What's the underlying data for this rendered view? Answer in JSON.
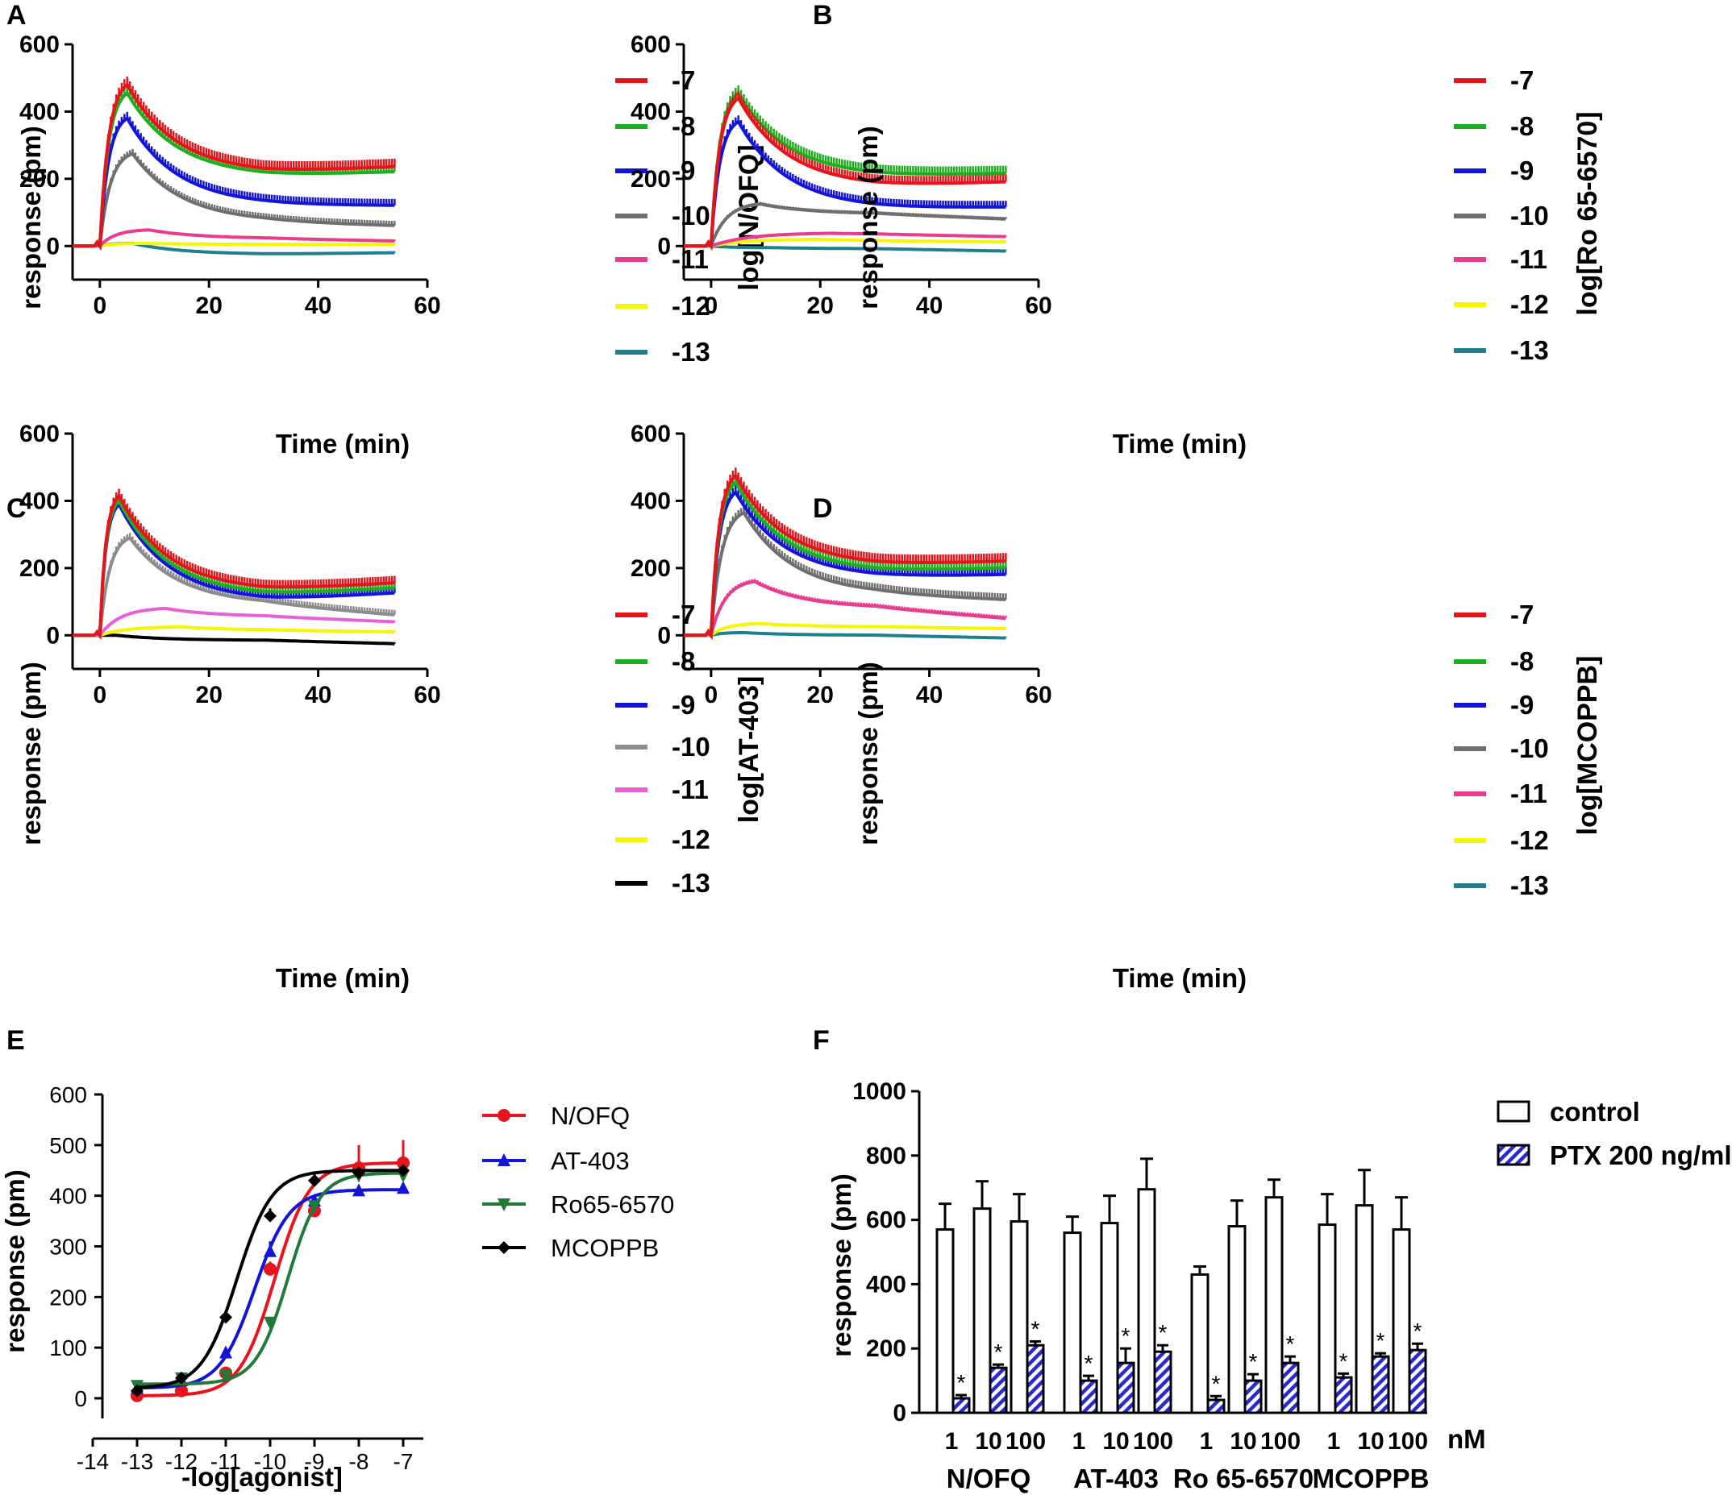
{
  "colors": {
    "red": "#e8141c",
    "green": "#1fae1f",
    "blue": "#1414d8",
    "grey": "#6f6f6f",
    "grey_light": "#8c8c8c",
    "pink": "#ea3c8e",
    "pink_light": "#e860d8",
    "yellow": "#f6f600",
    "teal": "#1f7f8f",
    "black": "#000000",
    "dark_green": "#207a3a",
    "hatch_blue": "#2a2ad0"
  },
  "chart_data": [
    {
      "id": "A",
      "panel_label": "A",
      "type": "line",
      "xlabel": "Time (min)",
      "ylabel": "response (pm)",
      "xlim": [
        -5,
        60
      ],
      "ylim": [
        -100,
        600
      ],
      "x_ticks": [
        "0",
        "20",
        "40",
        "60"
      ],
      "y_ticks": [
        "0",
        "200",
        "400",
        "600"
      ],
      "legend_title": "log[N/OFQ]",
      "series": [
        {
          "name": "-7",
          "color": "red",
          "peak": 480,
          "peak_t": 5,
          "plateau": 215,
          "tail": 235
        },
        {
          "name": "-8",
          "color": "green",
          "peak": 455,
          "peak_t": 5,
          "plateau": 205,
          "tail": 220
        },
        {
          "name": "-9",
          "color": "blue",
          "peak": 380,
          "peak_t": 5,
          "plateau": 120,
          "tail": 120
        },
        {
          "name": "-10",
          "color": "grey",
          "peak": 275,
          "peak_t": 6,
          "plateau": 70,
          "tail": 60
        },
        {
          "name": "-11",
          "color": "pink",
          "peak": 48,
          "peak_t": 9,
          "plateau": 22,
          "tail": 15
        },
        {
          "name": "-12",
          "color": "yellow",
          "peak": 8,
          "peak_t": 8,
          "plateau": 5,
          "tail": 5
        },
        {
          "name": "-13",
          "color": "teal",
          "peak": 8,
          "peak_t": 6,
          "plateau": -25,
          "tail": -20
        }
      ]
    },
    {
      "id": "B",
      "panel_label": "B",
      "type": "line",
      "xlabel": "Time (min)",
      "ylabel": "response (pm)",
      "xlim": [
        -5,
        60
      ],
      "ylim": [
        -100,
        600
      ],
      "x_ticks": [
        "0",
        "20",
        "40",
        "60"
      ],
      "y_ticks": [
        "0",
        "200",
        "400",
        "600"
      ],
      "legend_title": "log[Ro 65-6570]",
      "series": [
        {
          "name": "-7",
          "color": "red",
          "peak": 440,
          "peak_t": 5,
          "plateau": 175,
          "tail": 190
        },
        {
          "name": "-8",
          "color": "green",
          "peak": 455,
          "peak_t": 5,
          "plateau": 205,
          "tail": 215
        },
        {
          "name": "-9",
          "color": "blue",
          "peak": 370,
          "peak_t": 5,
          "plateau": 110,
          "tail": 115
        },
        {
          "name": "-10",
          "color": "grey",
          "peak": 125,
          "peak_t": 9,
          "plateau": 95,
          "tail": 80
        },
        {
          "name": "-11",
          "color": "pink",
          "peak": 38,
          "peak_t": 22,
          "plateau": 35,
          "tail": 28
        },
        {
          "name": "-12",
          "color": "yellow",
          "peak": 20,
          "peak_t": 20,
          "plateau": 15,
          "tail": 12
        },
        {
          "name": "-13",
          "color": "teal",
          "peak": -5,
          "peak_t": 12,
          "plateau": -8,
          "tail": -15
        }
      ]
    },
    {
      "id": "C",
      "panel_label": "C",
      "type": "line",
      "xlabel": "Time (min)",
      "ylabel": "response (pm)",
      "xlim": [
        -5,
        60
      ],
      "ylim": [
        -100,
        600
      ],
      "x_ticks": [
        "0",
        "20",
        "40",
        "60"
      ],
      "y_ticks": [
        "0",
        "200",
        "400",
        "600"
      ],
      "legend_title": "log[AT-403]",
      "series": [
        {
          "name": "-7",
          "color": "red",
          "peak": 415,
          "peak_t": 3.5,
          "plateau": 130,
          "tail": 155
        },
        {
          "name": "-8",
          "color": "green",
          "peak": 400,
          "peak_t": 3.5,
          "plateau": 115,
          "tail": 140
        },
        {
          "name": "-9",
          "color": "blue",
          "peak": 390,
          "peak_t": 3.5,
          "plateau": 100,
          "tail": 125
        },
        {
          "name": "-10",
          "color": "grey_light",
          "peak": 290,
          "peak_t": 5.5,
          "plateau": 90,
          "tail": 60
        },
        {
          "name": "-11",
          "color": "pink_light",
          "peak": 80,
          "peak_t": 12,
          "plateau": 55,
          "tail": 40
        },
        {
          "name": "-12",
          "color": "yellow",
          "peak": 25,
          "peak_t": 15,
          "plateau": 15,
          "tail": 10
        },
        {
          "name": "-13",
          "color": "black",
          "peak": 0,
          "peak_t": 3,
          "plateau": -15,
          "tail": -25
        }
      ]
    },
    {
      "id": "D",
      "panel_label": "D",
      "type": "line",
      "xlabel": "Time (min)",
      "ylabel": "response (pm)",
      "xlim": [
        -5,
        60
      ],
      "ylim": [
        -100,
        600
      ],
      "x_ticks": [
        "0",
        "20",
        "40",
        "60"
      ],
      "y_ticks": [
        "0",
        "200",
        "400",
        "600"
      ],
      "legend_title": "log[MCOPPB]",
      "series": [
        {
          "name": "-7",
          "color": "red",
          "peak": 475,
          "peak_t": 4.5,
          "plateau": 205,
          "tail": 220
        },
        {
          "name": "-8",
          "color": "green",
          "peak": 455,
          "peak_t": 4.5,
          "plateau": 185,
          "tail": 200
        },
        {
          "name": "-9",
          "color": "blue",
          "peak": 425,
          "peak_t": 4.5,
          "plateau": 170,
          "tail": 180
        },
        {
          "name": "-10",
          "color": "grey",
          "peak": 365,
          "peak_t": 6,
          "plateau": 120,
          "tail": 105
        },
        {
          "name": "-11",
          "color": "pink",
          "peak": 160,
          "peak_t": 8,
          "plateau": 80,
          "tail": 50
        },
        {
          "name": "-12",
          "color": "yellow",
          "peak": 35,
          "peak_t": 9,
          "plateau": 25,
          "tail": 20
        },
        {
          "name": "-13",
          "color": "teal",
          "peak": 8,
          "peak_t": 6,
          "plateau": 0,
          "tail": -8
        }
      ]
    },
    {
      "id": "E",
      "panel_label": "E",
      "type": "scatter",
      "xlabel": "-log[agonist]",
      "ylabel": "response (pm)",
      "xlim": [
        -14,
        -6.5
      ],
      "ylim": [
        -60,
        600
      ],
      "x_ticks": [
        "-14",
        "-13",
        "-12",
        "-11",
        "-10",
        "-9",
        "-8",
        "-7"
      ],
      "y_ticks": [
        "0",
        "100",
        "200",
        "300",
        "400",
        "500",
        "600"
      ],
      "x": [
        -13,
        -12,
        -11,
        -10,
        -9,
        -8,
        -7
      ],
      "series": [
        {
          "name": "N/OFQ",
          "color": "red",
          "marker": "circle",
          "values": [
            5,
            15,
            50,
            255,
            370,
            455,
            465
          ],
          "errors": [
            0,
            0,
            0,
            15,
            0,
            45,
            45
          ],
          "fit": {
            "bottom": 5,
            "top": 465,
            "logEC50": -9.9,
            "hill": 1.1
          }
        },
        {
          "name": "AT-403",
          "color": "blue",
          "marker": "triangle-up",
          "values": [
            20,
            35,
            90,
            290,
            390,
            410,
            415
          ],
          "errors": [
            0,
            0,
            0,
            20,
            0,
            0,
            0
          ],
          "fit": {
            "bottom": 20,
            "top": 412,
            "logEC50": -10.35,
            "hill": 1.1
          }
        },
        {
          "name": "Ro65-6570",
          "color": "dark_green",
          "marker": "triangle-down",
          "values": [
            25,
            40,
            45,
            150,
            380,
            440,
            440
          ],
          "errors": [
            0,
            0,
            0,
            0,
            0,
            0,
            0
          ],
          "fit": {
            "bottom": 28,
            "top": 445,
            "logEC50": -9.6,
            "hill": 1.2
          }
        },
        {
          "name": "MCOPPB",
          "color": "black",
          "marker": "diamond",
          "values": [
            15,
            40,
            160,
            360,
            430,
            445,
            450
          ],
          "errors": [
            0,
            0,
            0,
            15,
            15,
            0,
            0
          ],
          "fit": {
            "bottom": 20,
            "top": 450,
            "logEC50": -10.75,
            "hill": 1.1
          }
        }
      ]
    },
    {
      "id": "F",
      "panel_label": "F",
      "type": "bar",
      "ylabel": "response (pm)",
      "ylim": [
        0,
        1000
      ],
      "y_ticks": [
        "0",
        "200",
        "400",
        "600",
        "800",
        "1000"
      ],
      "unit_label": "nM",
      "legend": [
        {
          "name": "control",
          "style": "open"
        },
        {
          "name": "PTX 200 ng/ml",
          "style": "hatched"
        }
      ],
      "groups": [
        {
          "name": "N/OFQ",
          "doses": [
            "1",
            "10",
            "100"
          ],
          "control": [
            570,
            635,
            595
          ],
          "control_err": [
            80,
            85,
            85
          ],
          "ptx": [
            45,
            140,
            210
          ],
          "ptx_err": [
            10,
            10,
            12
          ]
        },
        {
          "name": "AT-403",
          "doses": [
            "1",
            "10",
            "100"
          ],
          "control": [
            560,
            590,
            695
          ],
          "control_err": [
            50,
            85,
            95
          ],
          "ptx": [
            100,
            155,
            190
          ],
          "ptx_err": [
            15,
            45,
            20
          ]
        },
        {
          "name": "Ro 65-6570",
          "doses": [
            "1",
            "10",
            "100"
          ],
          "control": [
            430,
            580,
            670
          ],
          "control_err": [
            25,
            80,
            55
          ],
          "ptx": [
            40,
            100,
            155
          ],
          "ptx_err": [
            12,
            20,
            20
          ]
        },
        {
          "name": "MCOPPB",
          "doses": [
            "1",
            "10",
            "100"
          ],
          "control": [
            585,
            645,
            570
          ],
          "control_err": [
            95,
            110,
            100
          ],
          "ptx": [
            110,
            175,
            195
          ],
          "ptx_err": [
            12,
            10,
            20
          ]
        }
      ],
      "significance_marker": "*"
    }
  ]
}
